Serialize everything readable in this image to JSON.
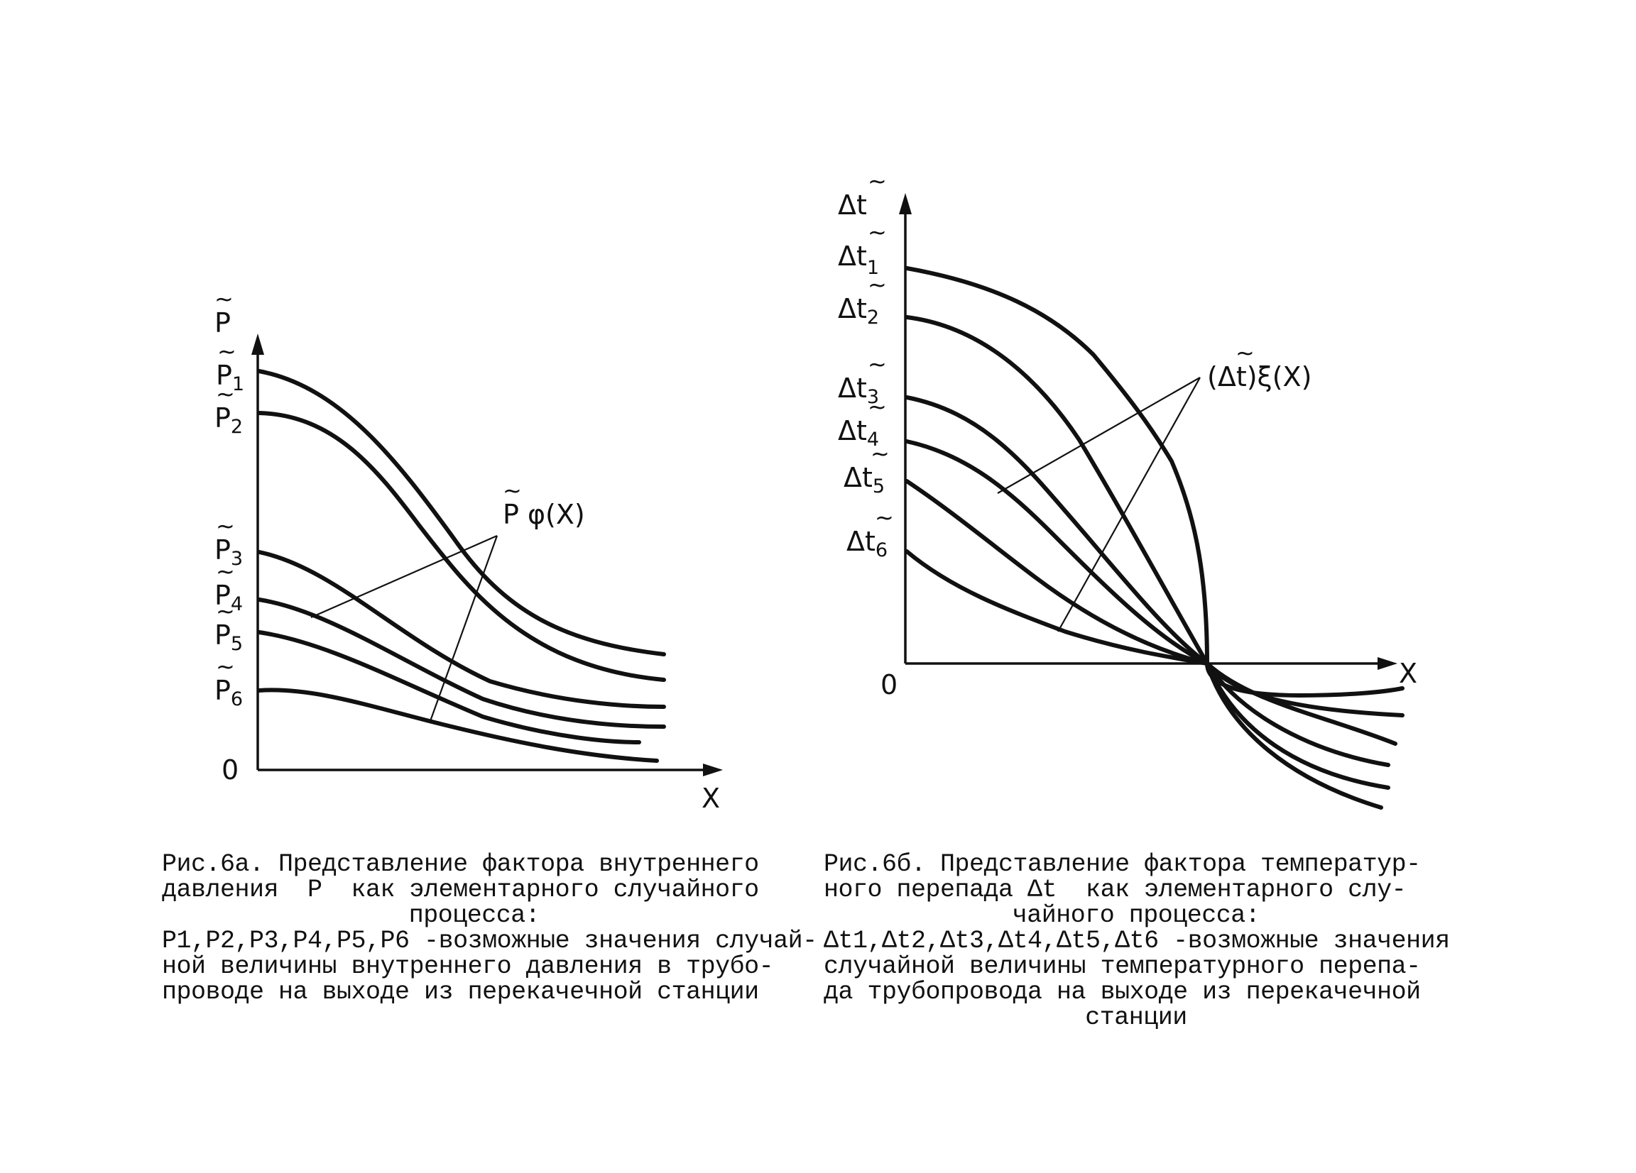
{
  "figure_a": {
    "axis_y_label": "P",
    "axis_x_label": "X",
    "origin_label": "0",
    "levels": [
      "P1",
      "P2",
      "P3",
      "P4",
      "P5",
      "P6"
    ],
    "annotation": "P φ(X)",
    "caption": {
      "line1": "Рис.6а. Представление фактора внутреннего",
      "line2": "давления  P  как элементарного случайного",
      "line3": "процесса:",
      "line4": "P1,P2,P3,P4,P5,P6 -возможные значения случай-",
      "line5": "ной величины внутреннего давления в трубо-",
      "line6": "проводе на выходе из перекачечной станции"
    }
  },
  "figure_b": {
    "axis_y_label": "Δt",
    "axis_x_label": "X",
    "origin_label": "0",
    "levels": [
      "Δt1",
      "Δt2",
      "Δt3",
      "Δt4",
      "Δt5",
      "Δt6"
    ],
    "annotation": "(Δt)ξ(X)",
    "caption": {
      "line1": "Рис.6б. Представление фактора температур-",
      "line2": "ного перепада Δt  как элементарного слу-",
      "line3": "чайного процесса:",
      "line4": "Δt1,Δt2,Δt3,Δt4,Δt5,Δt6 -возможные значения",
      "line5": "случайной величины температурного перепа-",
      "line6": "да трубопровода на выходе из перекачечной",
      "line7": "станции"
    }
  }
}
